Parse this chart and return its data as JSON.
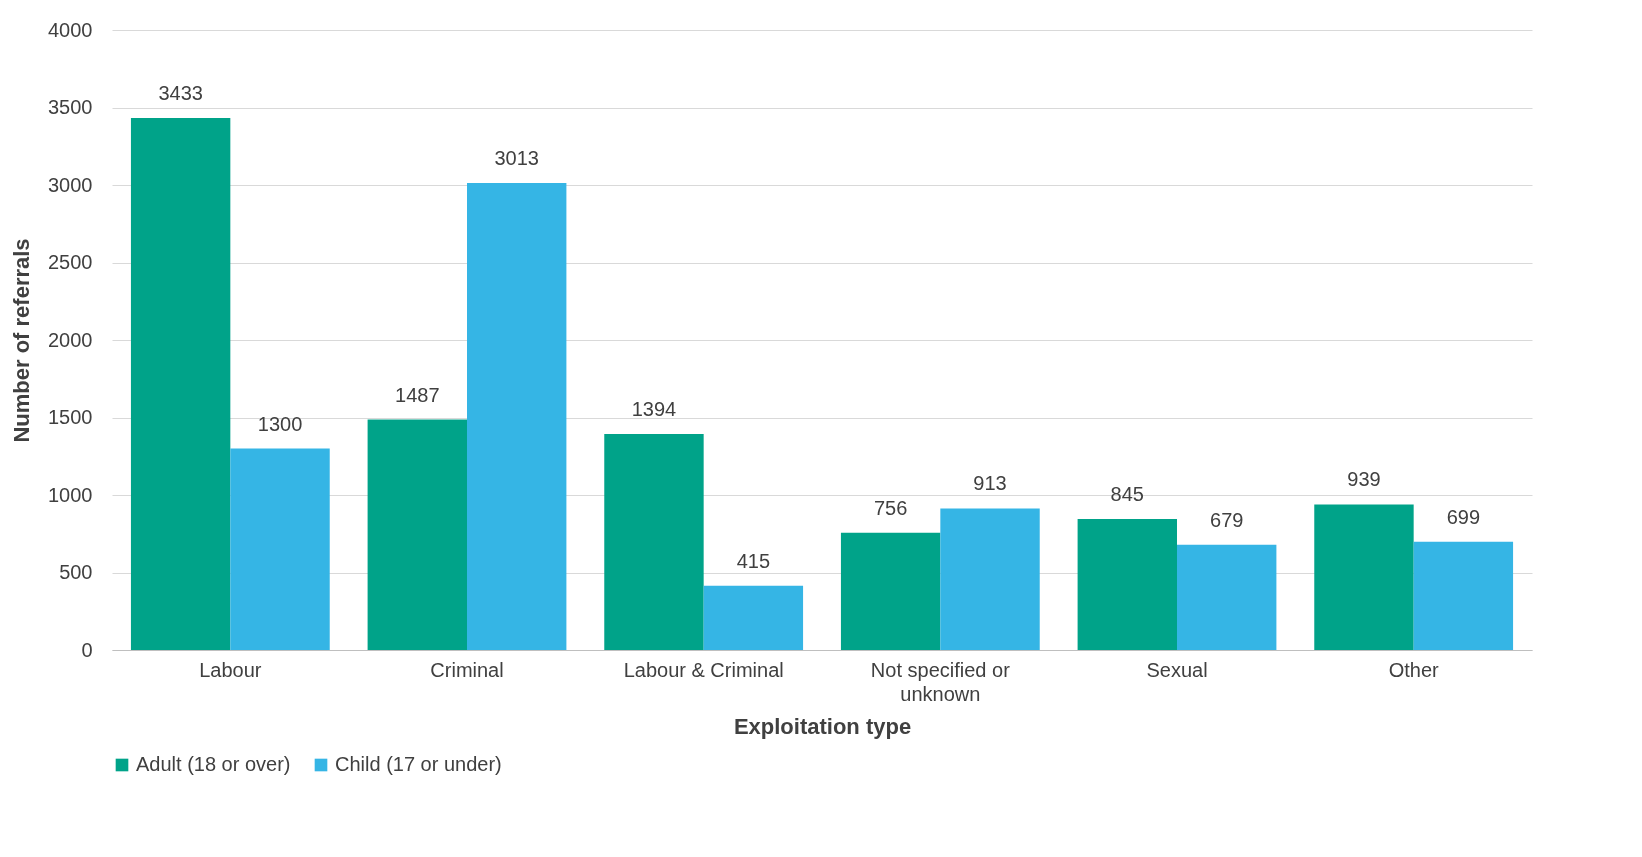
{
  "chart_data": {
    "type": "bar",
    "xlabel": "Exploitation type",
    "ylabel": "Number of referrals",
    "categories": [
      "Labour",
      "Criminal",
      "Labour & Criminal",
      "Not specified or unknown",
      "Sexual",
      "Other"
    ],
    "series": [
      {
        "name": "Adult (18 or over)",
        "color": "#00a389",
        "values": [
          3433,
          1487,
          1394,
          756,
          845,
          939
        ]
      },
      {
        "name": "Child (17 or under)",
        "color": "#35b5e5",
        "values": [
          1300,
          3013,
          415,
          913,
          679,
          699
        ]
      }
    ],
    "ylim": [
      0,
      4000
    ],
    "yticks": [
      0,
      500,
      1000,
      1500,
      2000,
      2500,
      3000,
      3500,
      4000
    ],
    "grid": "y",
    "legend": "bottom",
    "data_labels": true
  }
}
